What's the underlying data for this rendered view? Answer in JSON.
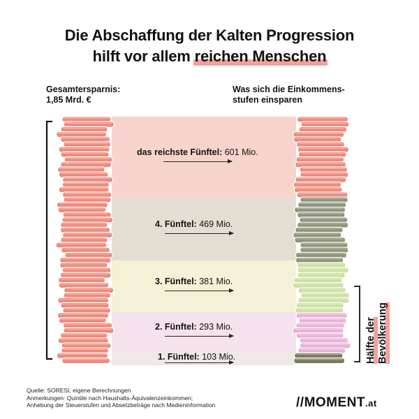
{
  "title": {
    "line1": "Die Abschaffung der Kalten Progression",
    "line2_prefix": "hilft vor allem ",
    "line2_highlight": "reichen Menschen"
  },
  "left_label": {
    "line1": "Gesamtersparnis:",
    "line2": "1,85 Mrd. €"
  },
  "right_label": {
    "line1": "Was sich die Einkommens-",
    "line2": "stufen einsparen"
  },
  "side_label": {
    "line1": "Hälfte der",
    "line2": "Bevölkerung"
  },
  "colors": {
    "coin_left": "#ee8a7c",
    "q5": "#ee8a7c",
    "q4": "#8e9478",
    "q3": "#cde0a2",
    "q2": "#e8b2d5",
    "q1": "#7c7a5e",
    "band5": "#f7d4cb",
    "band4": "#e4ded2",
    "band3": "#f4f1d6",
    "band2": "#f6e1ee",
    "band1": "#efe8e6",
    "accent": "#f2a19a"
  },
  "chart_data": {
    "type": "bar",
    "title": "Die Abschaffung der Kalten Progression hilft vor allem reichen Menschen",
    "total": "1,85 Mrd. €",
    "unit": "Mio.",
    "categories": [
      "das reichste Fünftel",
      "4. Fünftel",
      "3. Fünftel",
      "2. Fünftel",
      "1. Fünftel"
    ],
    "values": [
      601,
      469,
      381,
      293,
      103
    ],
    "labels": [
      {
        "name": "das reichste Fünftel:",
        "value": "601 Mio."
      },
      {
        "name": "4. Fünftel:",
        "value": "469 Mio."
      },
      {
        "name": "3. Fünftel:",
        "value": "381 Mio."
      },
      {
        "name": "2. Fünftel:",
        "value": "293 Mio."
      },
      {
        "name": "1. Fünftel:",
        "value": "103 Mio."
      }
    ]
  },
  "footer": {
    "line1": "Quelle: SORESI, eigene Berechnungen",
    "line2": "Anmerkungen: Quintile nach Haushalts-Äquivalenzeinkommen;",
    "line3": "Anhebung der Steuerstufen und Absetzbeträge nach Medieninformation"
  },
  "logo": {
    "main": "MOMENT",
    "suffix": ".at"
  }
}
